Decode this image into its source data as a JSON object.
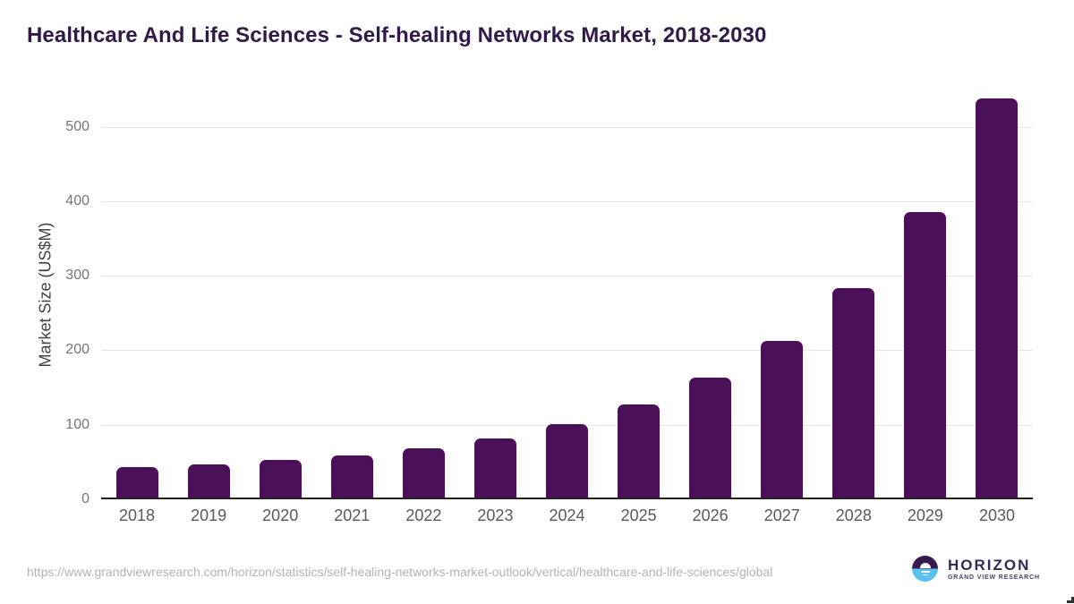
{
  "title": "Healthcare And Life Sciences - Self-healing Networks Market, 2018-2030",
  "chart_data": {
    "type": "bar",
    "title": "Healthcare And Life Sciences - Self-healing Networks Market, 2018-2030",
    "categories": [
      "2018",
      "2019",
      "2020",
      "2021",
      "2022",
      "2023",
      "2024",
      "2025",
      "2026",
      "2027",
      "2028",
      "2029",
      "2030"
    ],
    "values": [
      41,
      45,
      50,
      56,
      66,
      79,
      99,
      125,
      161,
      210,
      281,
      383,
      536
    ],
    "xlabel": "",
    "ylabel": "Market Size (US$M)",
    "yticks": [
      0,
      100,
      200,
      300,
      400,
      500
    ],
    "ylim": [
      0,
      550
    ],
    "grid": "horizontal",
    "legend": "none",
    "bar_color": "#4a1158"
  },
  "footer": {
    "source_url": "https://www.grandviewresearch.com/horizon/statistics/self-healing-networks-market-outlook/vertical/healthcare-and-life-sciences/global",
    "logo": {
      "name": "HORIZON",
      "subtitle": "GRAND VIEW RESEARCH",
      "mark_top_color": "#371b4e",
      "mark_bottom_color": "#58c1f0"
    }
  },
  "colors": {
    "title": "#31194a",
    "bar": "#4a1158",
    "gridline": "#e6e6e6",
    "axis_line": "#212121",
    "y_tick_label": "#757575",
    "x_tick_label": "#595959",
    "y_axis_title": "#424242",
    "source_url": "#b3b3b3"
  }
}
